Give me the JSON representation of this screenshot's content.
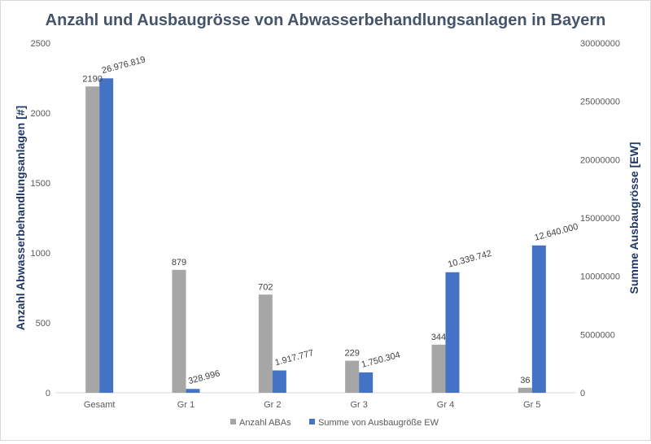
{
  "chart_data": {
    "type": "bar",
    "title": "Anzahl und Ausbaugrösse von Abwasserbehandlungsanlagen in Bayern",
    "categories": [
      "Gesamt",
      "Gr 1",
      "Gr 2",
      "Gr 3",
      "Gr 4",
      "Gr 5"
    ],
    "y_left": {
      "label": "Anzahl Abwasserbehandlungsanlagen [#]",
      "ylim": [
        0,
        2500
      ],
      "ticks": [
        "0",
        "500",
        "1000",
        "1500",
        "2000",
        "2500"
      ]
    },
    "y_right": {
      "label": "Summe Ausbaugrösse [EW]",
      "ylim": [
        0,
        30000000
      ],
      "ticks": [
        "0",
        "5000000",
        "10000000",
        "15000000",
        "20000000",
        "25000000",
        "30000000"
      ]
    },
    "series": [
      {
        "name": "Anzahl ABAs",
        "axis": "left",
        "color": "#a6a6a6",
        "values": [
          2190,
          879,
          702,
          229,
          344,
          36
        ],
        "labels": [
          "2190",
          "879",
          "702",
          "229",
          "344",
          "36"
        ]
      },
      {
        "name": "Summe von Ausbaugröße EW",
        "axis": "right",
        "color": "#4472c4",
        "values": [
          26976819,
          328996,
          1917777,
          1750304,
          10339742,
          12640000
        ],
        "labels": [
          "26.976.819",
          "328.996",
          "1.917.777",
          "1.750.304",
          "10.339.742",
          "12.640.000"
        ]
      }
    ],
    "grid": false,
    "legend": "bottom"
  }
}
